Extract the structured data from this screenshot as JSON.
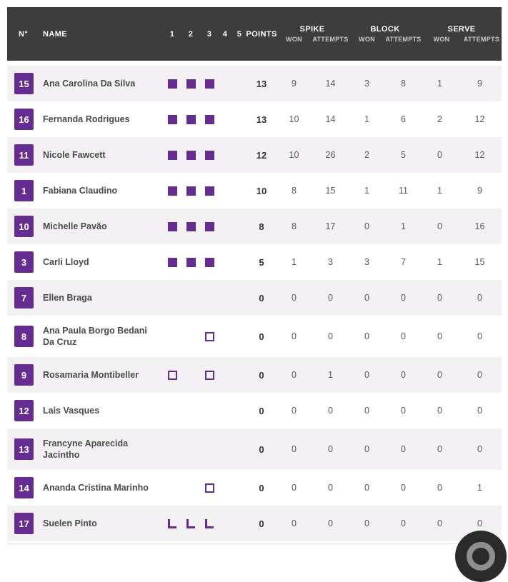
{
  "header": {
    "no": "N°",
    "name": "NAME",
    "sets": [
      "1",
      "2",
      "3",
      "4",
      "5"
    ],
    "points": "POINTS",
    "spike": "SPIKE",
    "block": "BLOCK",
    "serve": "SERVE",
    "won": "WON",
    "attempts": "ATTEMPTS"
  },
  "players": [
    {
      "number": "15",
      "name": "Ana Carolina Da Silva",
      "sets": [
        "filled",
        "filled",
        "filled",
        "",
        ""
      ],
      "points": "13",
      "spike_won": "9",
      "spike_att": "14",
      "block_won": "3",
      "block_att": "8",
      "serve_won": "1",
      "serve_att": "9"
    },
    {
      "number": "16",
      "name": "Fernanda Rodrigues",
      "sets": [
        "filled",
        "filled",
        "filled",
        "",
        ""
      ],
      "points": "13",
      "spike_won": "10",
      "spike_att": "14",
      "block_won": "1",
      "block_att": "6",
      "serve_won": "2",
      "serve_att": "12"
    },
    {
      "number": "11",
      "name": "Nicole Fawcett",
      "sets": [
        "filled",
        "filled",
        "filled",
        "",
        ""
      ],
      "points": "12",
      "spike_won": "10",
      "spike_att": "26",
      "block_won": "2",
      "block_att": "5",
      "serve_won": "0",
      "serve_att": "12"
    },
    {
      "number": "1",
      "name": "Fabiana Claudino",
      "sets": [
        "filled",
        "filled",
        "filled",
        "",
        ""
      ],
      "points": "10",
      "spike_won": "8",
      "spike_att": "15",
      "block_won": "1",
      "block_att": "11",
      "serve_won": "1",
      "serve_att": "9"
    },
    {
      "number": "10",
      "name": "Michelle Pavão",
      "sets": [
        "filled",
        "filled",
        "filled",
        "",
        ""
      ],
      "points": "8",
      "spike_won": "8",
      "spike_att": "17",
      "block_won": "0",
      "block_att": "1",
      "serve_won": "0",
      "serve_att": "16"
    },
    {
      "number": "3",
      "name": "Carli Lloyd",
      "sets": [
        "filled",
        "filled",
        "filled",
        "",
        ""
      ],
      "points": "5",
      "spike_won": "1",
      "spike_att": "3",
      "block_won": "3",
      "block_att": "7",
      "serve_won": "1",
      "serve_att": "15"
    },
    {
      "number": "7",
      "name": "Ellen Braga",
      "sets": [
        "",
        "",
        "",
        "",
        ""
      ],
      "points": "0",
      "spike_won": "0",
      "spike_att": "0",
      "block_won": "0",
      "block_att": "0",
      "serve_won": "0",
      "serve_att": "0"
    },
    {
      "number": "8",
      "name": "Ana Paula Borgo Bedani Da Cruz",
      "sets": [
        "",
        "",
        "outline",
        "",
        ""
      ],
      "points": "0",
      "spike_won": "0",
      "spike_att": "0",
      "block_won": "0",
      "block_att": "0",
      "serve_won": "0",
      "serve_att": "0"
    },
    {
      "number": "9",
      "name": "Rosamaria Montibeller",
      "sets": [
        "outline",
        "",
        "outline",
        "",
        ""
      ],
      "points": "0",
      "spike_won": "0",
      "spike_att": "1",
      "block_won": "0",
      "block_att": "0",
      "serve_won": "0",
      "serve_att": "0"
    },
    {
      "number": "12",
      "name": "Lais Vasques",
      "sets": [
        "",
        "",
        "",
        "",
        ""
      ],
      "points": "0",
      "spike_won": "0",
      "spike_att": "0",
      "block_won": "0",
      "block_att": "0",
      "serve_won": "0",
      "serve_att": "0"
    },
    {
      "number": "13",
      "name": "Francyne Aparecida Jacintho",
      "sets": [
        "",
        "",
        "",
        "",
        ""
      ],
      "points": "0",
      "spike_won": "0",
      "spike_att": "0",
      "block_won": "0",
      "block_att": "0",
      "serve_won": "0",
      "serve_att": "0"
    },
    {
      "number": "14",
      "name": "Ananda Cristina Marinho",
      "sets": [
        "",
        "",
        "outline",
        "",
        ""
      ],
      "points": "0",
      "spike_won": "0",
      "spike_att": "0",
      "block_won": "0",
      "block_att": "0",
      "serve_won": "0",
      "serve_att": "1"
    },
    {
      "number": "17",
      "name": "Suelen Pinto",
      "sets": [
        "libero",
        "libero",
        "libero",
        "",
        ""
      ],
      "points": "0",
      "spike_won": "0",
      "spike_att": "0",
      "block_won": "0",
      "block_att": "0",
      "serve_won": "0",
      "serve_att": "0"
    }
  ],
  "marker_legend": {
    "filled": "played-set-marker",
    "outline": "substitute-set-marker",
    "libero": "libero-set-marker"
  },
  "colors": {
    "accent": "#662d91",
    "header_bg": "#3d3d3d",
    "row_alt": "#f4f1f5"
  }
}
